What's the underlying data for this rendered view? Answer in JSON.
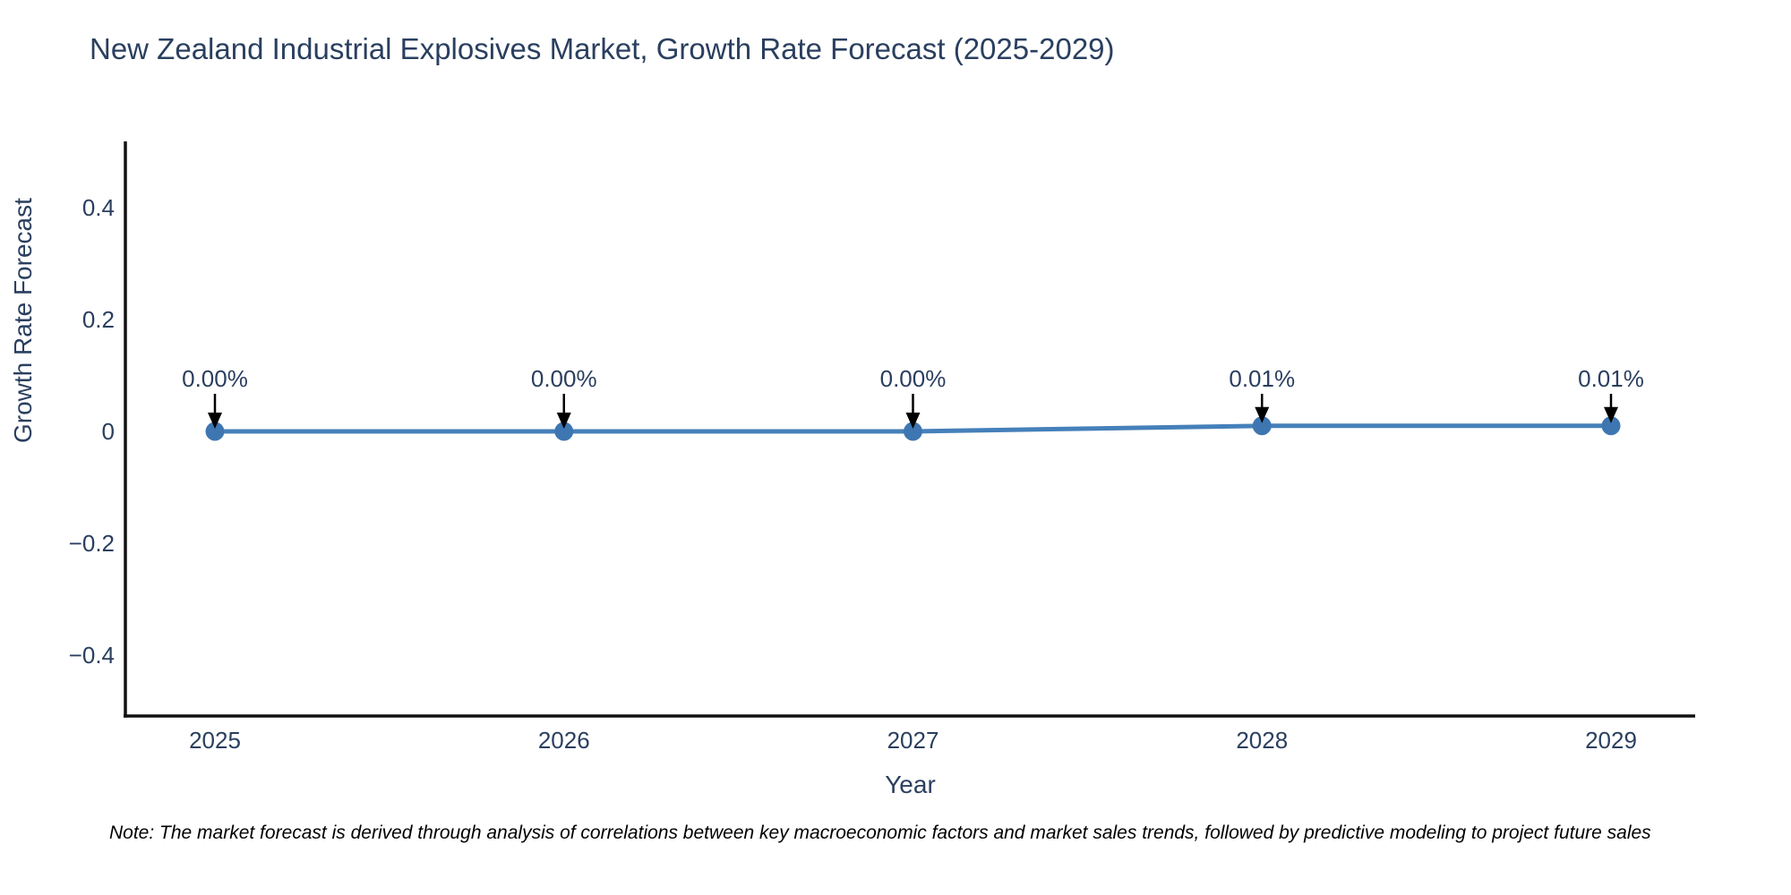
{
  "note": "Note: The market forecast is derived through analysis of correlations between key macroeconomic factors and market sales trends, followed by predictive modeling to project future sales",
  "colors": {
    "title_text": "#2a3f5f",
    "tick_text": "#2a3f5f",
    "line": "#4580ba",
    "marker": "#3e76b1",
    "spine": "#111111",
    "arrow": "#000000",
    "note_text": "#000000",
    "background": "#ffffff"
  },
  "chart_data": {
    "type": "line",
    "title": "New Zealand Industrial Explosives Market, Growth Rate Forecast (2025-2029)",
    "xlabel": "Year",
    "ylabel": "Growth Rate Forecast",
    "categories": [
      "2025",
      "2026",
      "2027",
      "2028",
      "2029"
    ],
    "values": [
      0.0,
      0.0,
      0.0,
      0.01,
      0.01
    ],
    "point_labels": [
      "0.00%",
      "0.00%",
      "0.00%",
      "0.01%",
      "0.01%"
    ],
    "yticks": [
      "0.4",
      "0.2",
      "0",
      "−0.2",
      "−0.4"
    ],
    "ytick_values": [
      0.4,
      0.2,
      0,
      -0.2,
      -0.4
    ],
    "ylim": [
      -0.51,
      0.52
    ],
    "grid": false,
    "legend": false,
    "marker_style": "filled-circle",
    "annotation_style": "value label with downward black arrow to each point"
  }
}
